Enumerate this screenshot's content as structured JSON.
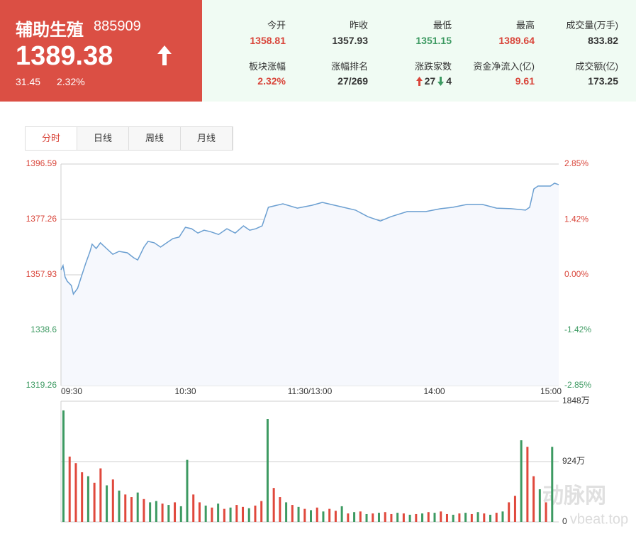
{
  "header": {
    "name": "辅助生殖",
    "code": "885909",
    "price": "1389.38",
    "change": "31.45",
    "change_pct": "2.32%"
  },
  "stats": [
    {
      "label": "今开",
      "value": "1358.81",
      "color": "#d9453a"
    },
    {
      "label": "昨收",
      "value": "1357.93",
      "color": "#333333"
    },
    {
      "label": "最低",
      "value": "1351.15",
      "color": "#3d9a62"
    },
    {
      "label": "最高",
      "value": "1389.64",
      "color": "#d9453a"
    },
    {
      "label": "成交量(万手)",
      "value": "833.82",
      "color": "#333333"
    },
    {
      "label": "板块涨幅",
      "value": "2.32%",
      "color": "#d9453a"
    },
    {
      "label": "涨幅排名",
      "value": "27/269",
      "color": "#333333"
    },
    {
      "label": "涨跌家数",
      "up": "27",
      "down": "4",
      "color": "#333333"
    },
    {
      "label": "资金净流入(亿)",
      "value": "9.61",
      "color": "#d9453a"
    },
    {
      "label": "成交额(亿)",
      "value": "173.25",
      "color": "#333333"
    }
  ],
  "tabs": [
    "分时",
    "日线",
    "周线",
    "月线"
  ],
  "watermark": {
    "brand": "动脉网",
    "site": "vbeat.top"
  },
  "chart_data": [
    {
      "type": "line",
      "color": "#6b9fd1",
      "x": [
        0,
        1,
        2,
        3,
        5,
        6,
        8,
        10,
        12,
        14,
        15,
        17,
        19,
        22,
        25,
        28,
        32,
        35,
        37,
        40,
        42,
        45,
        48,
        51,
        54,
        57,
        60,
        63,
        66,
        69,
        72,
        76,
        80,
        84,
        88,
        91,
        94,
        97,
        100,
        107,
        114,
        121,
        126,
        135,
        142,
        148,
        154,
        159,
        167,
        176,
        183,
        189,
        196,
        203,
        210,
        217,
        224,
        226,
        228,
        230,
        236,
        238,
        240
      ],
      "values": [
        1359.66,
        1361.14,
        1357.18,
        1355.69,
        1354.2,
        1351.2,
        1353.2,
        1357.7,
        1362.1,
        1366.1,
        1368.6,
        1367.1,
        1369.1,
        1367.1,
        1365.1,
        1366.1,
        1365.6,
        1363.9,
        1363.1,
        1367.6,
        1369.6,
        1369.1,
        1367.6,
        1369.1,
        1370.6,
        1371.1,
        1374.5,
        1374.0,
        1372.5,
        1373.5,
        1373.0,
        1372.0,
        1374.0,
        1372.5,
        1375.0,
        1373.5,
        1374.0,
        1375.0,
        1381.5,
        1382.7,
        1381.2,
        1382.2,
        1383.2,
        1381.7,
        1380.5,
        1378.2,
        1376.7,
        1378.2,
        1380.0,
        1380.0,
        1381.0,
        1381.5,
        1382.5,
        1382.5,
        1381.2,
        1381.0,
        1380.5,
        1381.5,
        1387.9,
        1388.9,
        1388.9,
        1389.9,
        1389.38
      ],
      "xlim": [
        0,
        240
      ],
      "xticks": [
        {
          "value": 0,
          "label": "09:30"
        },
        {
          "value": 60,
          "label": "10:30"
        },
        {
          "value": 120,
          "label": "11:30/13:00"
        },
        {
          "value": 180,
          "label": "14:00"
        },
        {
          "value": 240,
          "label": "15:00"
        }
      ],
      "ylim": [
        1319.26,
        1396.59
      ],
      "yticks": [
        1319.26,
        1338.6,
        1357.93,
        1377.26,
        1396.59
      ],
      "y2lim": [
        -2.85,
        2.85
      ],
      "y2ticks": [
        {
          "value": -2.85,
          "label": "-2.85%"
        },
        {
          "value": -1.42,
          "label": "-1.42%"
        },
        {
          "value": 0,
          "label": "0.00%"
        },
        {
          "value": 1.42,
          "label": "1.42%"
        },
        {
          "value": 2.85,
          "label": "2.85%"
        }
      ],
      "grid": true
    },
    {
      "type": "bar",
      "x": [
        0,
        3,
        6,
        9,
        12,
        15,
        18,
        21,
        24,
        27,
        30,
        33,
        36,
        39,
        42,
        45,
        48,
        51,
        54,
        57,
        60,
        63,
        66,
        69,
        72,
        75,
        78,
        81,
        84,
        87,
        90,
        93,
        96,
        99,
        102,
        105,
        108,
        111,
        114,
        117,
        120,
        123,
        126,
        129,
        132,
        135,
        138,
        141,
        144,
        147,
        150,
        153,
        156,
        159,
        162,
        165,
        168,
        171,
        174,
        177,
        180,
        183,
        186,
        189,
        192,
        195,
        198,
        201,
        204,
        207,
        210,
        213,
        216,
        219,
        222,
        225,
        228,
        231,
        234,
        237
      ],
      "values": [
        1707,
        1000,
        900,
        760,
        700,
        600,
        820,
        560,
        650,
        480,
        420,
        380,
        450,
        350,
        300,
        320,
        280,
        260,
        300,
        240,
        950,
        420,
        300,
        250,
        220,
        280,
        200,
        220,
        260,
        230,
        210,
        250,
        320,
        1576,
        520,
        380,
        300,
        260,
        230,
        200,
        180,
        220,
        160,
        200,
        170,
        240,
        130,
        150,
        160,
        120,
        130,
        140,
        150,
        120,
        140,
        130,
        110,
        120,
        130,
        150,
        140,
        160,
        120,
        110,
        130,
        140,
        120,
        150,
        130,
        110,
        140,
        160,
        300,
        400,
        1250,
        1150,
        700,
        500,
        300,
        1150
      ],
      "colors": [
        "#3d9a62",
        "#e0483c",
        "#e0483c",
        "#e0483c",
        "#3d9a62",
        "#e0483c",
        "#e0483c",
        "#3d9a62",
        "#e0483c",
        "#3d9a62",
        "#e0483c",
        "#e0483c",
        "#3d9a62",
        "#e0483c",
        "#3d9a62",
        "#3d9a62",
        "#e0483c",
        "#3d9a62",
        "#e0483c",
        "#3d9a62",
        "#3d9a62",
        "#e0483c",
        "#e0483c",
        "#3d9a62",
        "#e0483c",
        "#3d9a62",
        "#e0483c",
        "#3d9a62",
        "#e0483c",
        "#e0483c",
        "#3d9a62",
        "#e0483c",
        "#e0483c",
        "#3d9a62",
        "#e0483c",
        "#e0483c",
        "#3d9a62",
        "#e0483c",
        "#3d9a62",
        "#e0483c",
        "#3d9a62",
        "#e0483c",
        "#3d9a62",
        "#e0483c",
        "#e0483c",
        "#3d9a62",
        "#e0483c",
        "#3d9a62",
        "#e0483c",
        "#3d9a62",
        "#e0483c",
        "#3d9a62",
        "#e0483c",
        "#e0483c",
        "#3d9a62",
        "#e0483c",
        "#3d9a62",
        "#e0483c",
        "#3d9a62",
        "#e0483c",
        "#3d9a62",
        "#e0483c",
        "#e0483c",
        "#3d9a62",
        "#e0483c",
        "#3d9a62",
        "#e0483c",
        "#3d9a62",
        "#e0483c",
        "#3d9a62",
        "#e0483c",
        "#3d9a62",
        "#e0483c",
        "#e0483c",
        "#3d9a62",
        "#e0483c",
        "#e0483c",
        "#3d9a62",
        "#e0483c",
        "#3d9a62"
      ],
      "xlim": [
        0,
        240
      ],
      "ylim": [
        0,
        1848
      ],
      "yticks": [
        0,
        {
          "value": 924,
          "label": "924万"
        },
        {
          "value": 1848,
          "label": "1848万"
        }
      ]
    }
  ]
}
